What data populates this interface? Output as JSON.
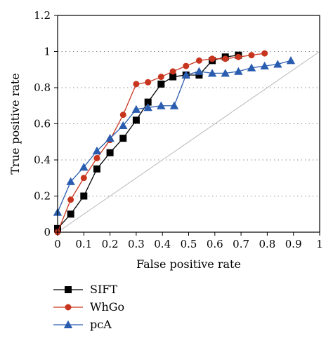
{
  "chart_data": {
    "type": "line",
    "title": "",
    "xlabel": "False positive rate",
    "ylabel": "True positive rate",
    "xlim": [
      0,
      1
    ],
    "ylim": [
      0,
      1.2
    ],
    "x_ticks": [
      0,
      0.1,
      0.2,
      0.3,
      0.4,
      0.5,
      0.6,
      0.7,
      0.8,
      0.9,
      1
    ],
    "x_tick_labels": [
      "0",
      "0.1",
      "0.2",
      "0.3",
      "0.4",
      "0.5",
      "0.6",
      "0.7",
      "0.8",
      "0.9",
      "1"
    ],
    "y_ticks": [
      0,
      0.2,
      0.4,
      0.6,
      0.8,
      1,
      1.2
    ],
    "y_tick_labels": [
      "0",
      "0.2",
      "0.4",
      "0.6",
      "0.8",
      "1",
      "1.2"
    ],
    "grid": "horizontal dotted",
    "reference_line": {
      "x": [
        0,
        1
      ],
      "y": [
        0,
        1
      ],
      "color": "#b8b8b8"
    },
    "legend_position": "below",
    "series": [
      {
        "name": "SIFT",
        "marker": "square",
        "color": "#000000",
        "x": [
          0,
          0.05,
          0.1,
          0.15,
          0.2,
          0.25,
          0.3,
          0.345,
          0.395,
          0.44,
          0.49,
          0.54,
          0.59,
          0.64,
          0.69
        ],
        "y": [
          0.02,
          0.1,
          0.2,
          0.35,
          0.44,
          0.52,
          0.62,
          0.72,
          0.82,
          0.86,
          0.87,
          0.87,
          0.95,
          0.97,
          0.98
        ]
      },
      {
        "name": "WhGo",
        "marker": "circle",
        "color": "#c8351e",
        "x": [
          0,
          0.05,
          0.1,
          0.15,
          0.2,
          0.25,
          0.3,
          0.345,
          0.395,
          0.44,
          0.49,
          0.54,
          0.59,
          0.64,
          0.69,
          0.74,
          0.79
        ],
        "y": [
          0,
          0.18,
          0.3,
          0.41,
          0.51,
          0.65,
          0.82,
          0.83,
          0.86,
          0.89,
          0.92,
          0.95,
          0.96,
          0.96,
          0.97,
          0.98,
          0.99
        ]
      },
      {
        "name": "pcA",
        "marker": "triangle",
        "color": "#2a5db0",
        "x": [
          0,
          0.05,
          0.1,
          0.15,
          0.2,
          0.25,
          0.3,
          0.345,
          0.395,
          0.445,
          0.49,
          0.54,
          0.59,
          0.64,
          0.69,
          0.74,
          0.79,
          0.84,
          0.89
        ],
        "y": [
          0.11,
          0.28,
          0.36,
          0.45,
          0.52,
          0.59,
          0.68,
          0.69,
          0.7,
          0.7,
          0.87,
          0.89,
          0.88,
          0.88,
          0.89,
          0.91,
          0.92,
          0.93,
          0.95
        ]
      }
    ]
  }
}
